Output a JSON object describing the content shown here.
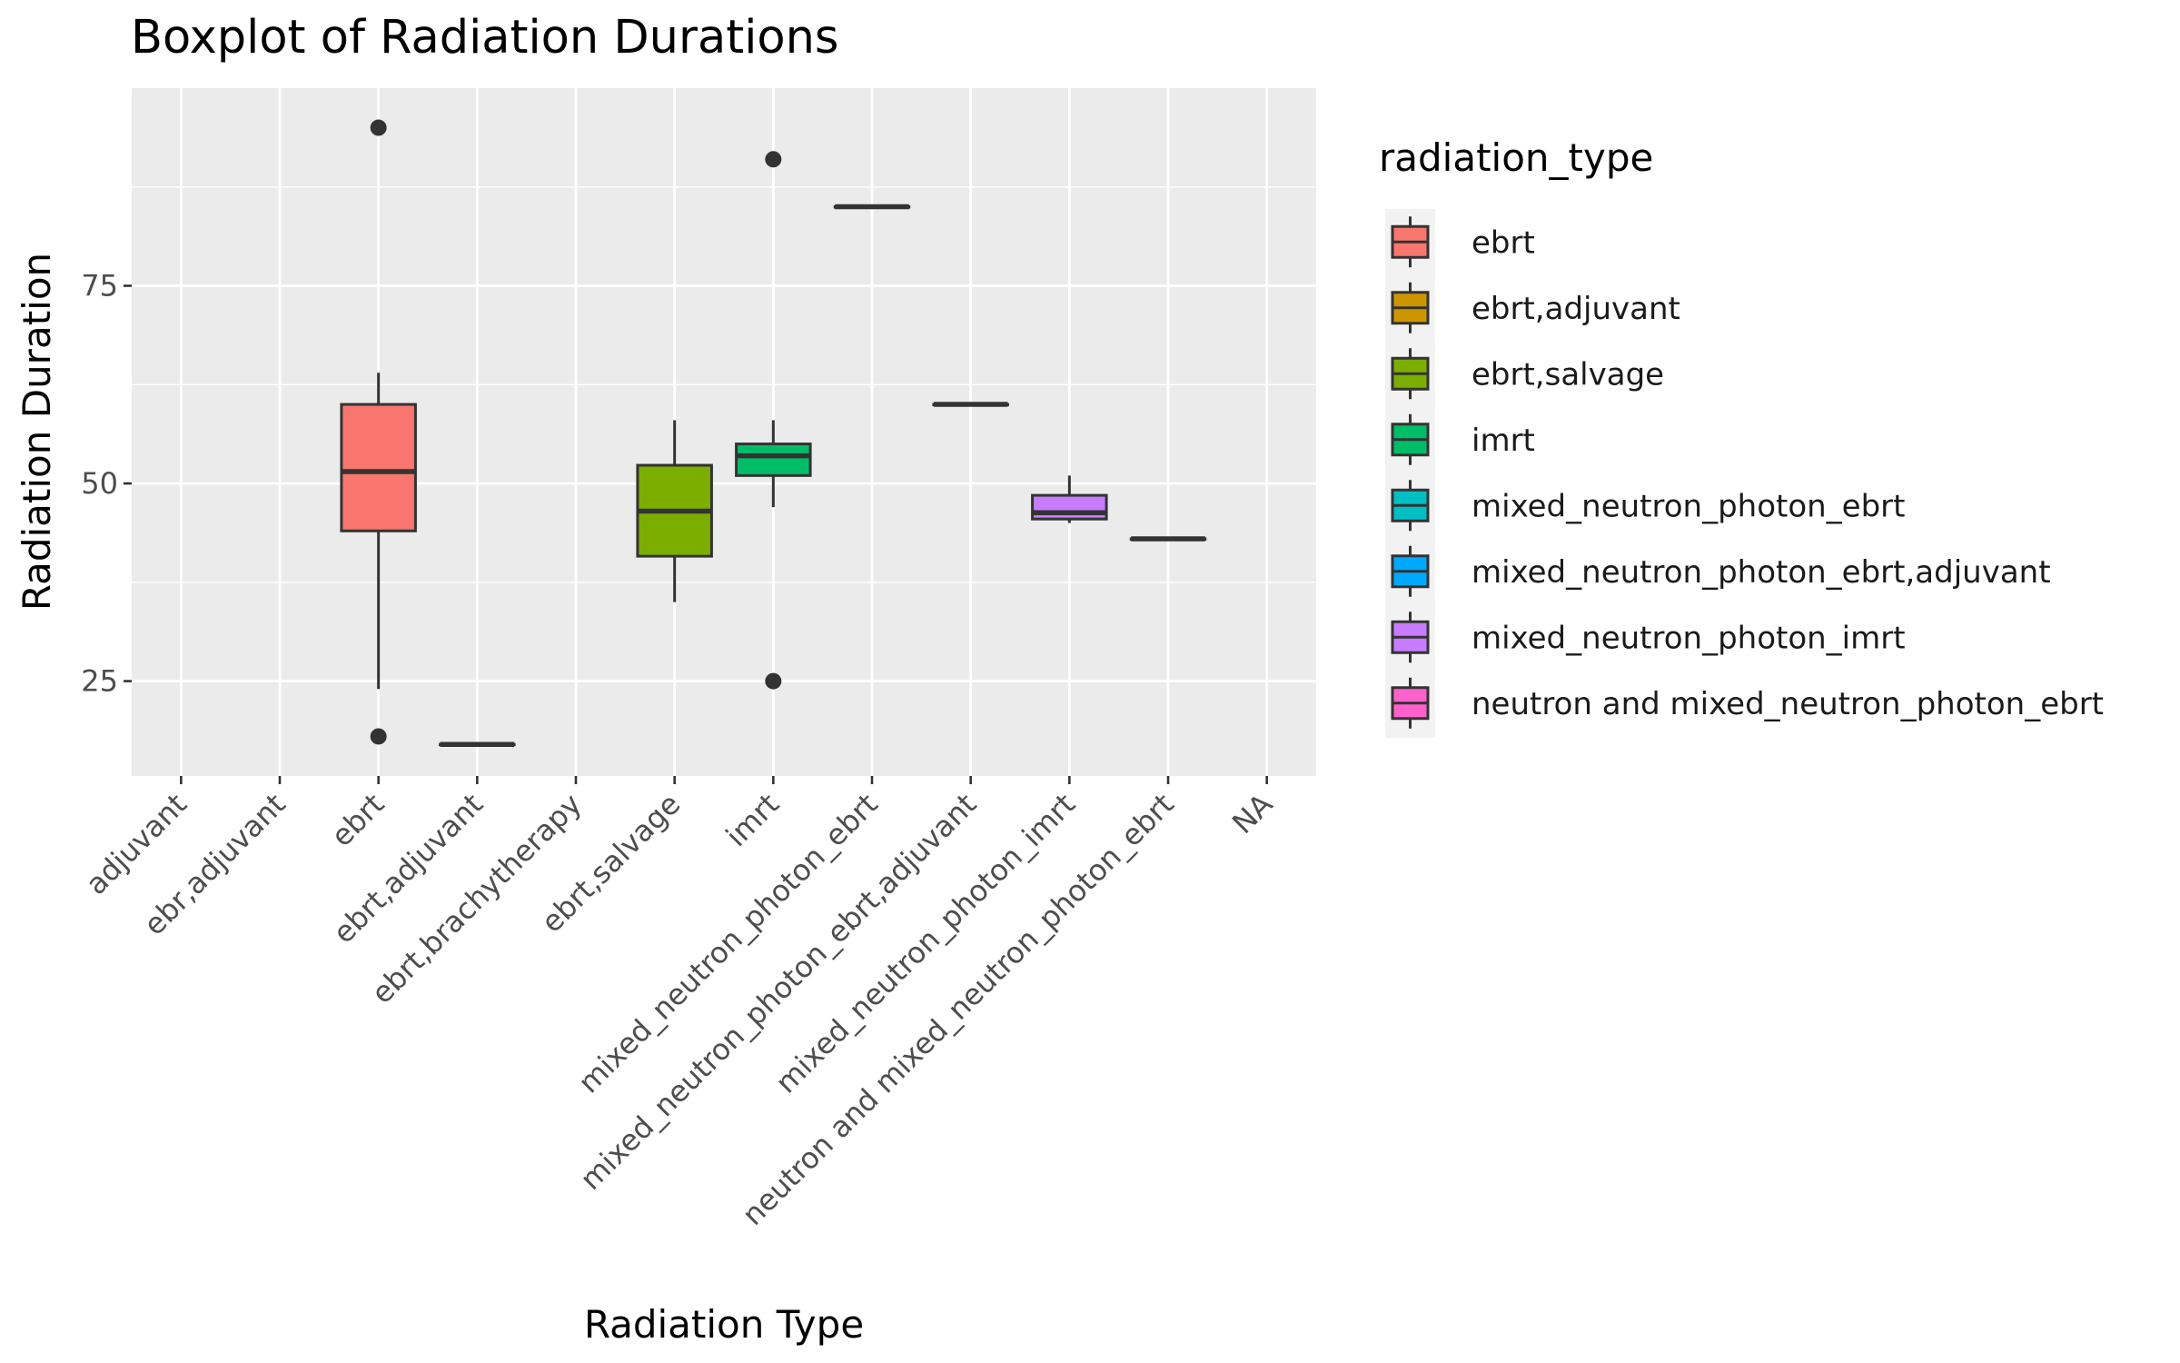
{
  "chart_data": {
    "type": "boxplot",
    "title": "Boxplot of Radiation Durations",
    "xlabel": "Radiation Type",
    "ylabel": "Radiation Duration",
    "ylim": [
      13,
      100
    ],
    "yticks": [
      25,
      50,
      75
    ],
    "grid": true,
    "legend_position": "right",
    "categories": [
      "adjuvant",
      "ebr,adjuvant",
      "ebrt",
      "ebrt,adjuvant",
      "ebrt,brachytherapy",
      "ebrt,salvage",
      "imrt",
      "mixed_neutron_photon_ebrt",
      "mixed_neutron_photon_ebrt,adjuvant",
      "mixed_neutron_photon_imrt",
      "neutron and mixed_neutron_photon_ebrt",
      "NA"
    ],
    "legend": {
      "title": "radiation_type",
      "entries": [
        {
          "label": "ebrt",
          "color": "#F8766D"
        },
        {
          "label": "ebrt,adjuvant",
          "color": "#CD9600"
        },
        {
          "label": "ebrt,salvage",
          "color": "#7CAE00"
        },
        {
          "label": "imrt",
          "color": "#00BE67"
        },
        {
          "label": "mixed_neutron_photon_ebrt",
          "color": "#00BFC4"
        },
        {
          "label": "mixed_neutron_photon_ebrt,adjuvant",
          "color": "#00A9FF"
        },
        {
          "label": "mixed_neutron_photon_imrt",
          "color": "#C77CFF"
        },
        {
          "label": "neutron and mixed_neutron_photon_ebrt",
          "color": "#FF61CC"
        }
      ]
    },
    "boxes": [
      {
        "category": "ebrt",
        "fill": "#F8766D",
        "whisker_low": 24,
        "q1": 44,
        "median": 51.5,
        "q3": 60,
        "whisker_high": 64,
        "outliers": [
          18,
          95
        ]
      },
      {
        "category": "ebrt,adjuvant",
        "fill": "#CD9600",
        "whisker_low": 17,
        "q1": 17,
        "median": 17,
        "q3": 17,
        "whisker_high": 17,
        "outliers": []
      },
      {
        "category": "ebrt,salvage",
        "fill": "#7CAE00",
        "whisker_low": 35,
        "q1": 40.8,
        "median": 46.5,
        "q3": 52.3,
        "whisker_high": 58,
        "outliers": []
      },
      {
        "category": "imrt",
        "fill": "#00BE67",
        "whisker_low": 47,
        "q1": 51,
        "median": 53.5,
        "q3": 55,
        "whisker_high": 58,
        "outliers": [
          25,
          91
        ]
      },
      {
        "category": "mixed_neutron_photon_ebrt",
        "fill": "#00BFC4",
        "whisker_low": 85,
        "q1": 85,
        "median": 85,
        "q3": 85,
        "whisker_high": 85,
        "outliers": []
      },
      {
        "category": "mixed_neutron_photon_ebrt,adjuvant",
        "fill": "#00A9FF",
        "whisker_low": 60,
        "q1": 60,
        "median": 60,
        "q3": 60,
        "whisker_high": 60,
        "outliers": []
      },
      {
        "category": "mixed_neutron_photon_imrt",
        "fill": "#C77CFF",
        "whisker_low": 45,
        "q1": 45.5,
        "median": 46.3,
        "q3": 48.5,
        "whisker_high": 51,
        "outliers": []
      },
      {
        "category": "neutron and mixed_neutron_photon_ebrt",
        "fill": "#FF61CC",
        "whisker_low": 43,
        "q1": 43,
        "median": 43,
        "q3": 43,
        "whisker_high": 43,
        "outliers": []
      }
    ]
  }
}
